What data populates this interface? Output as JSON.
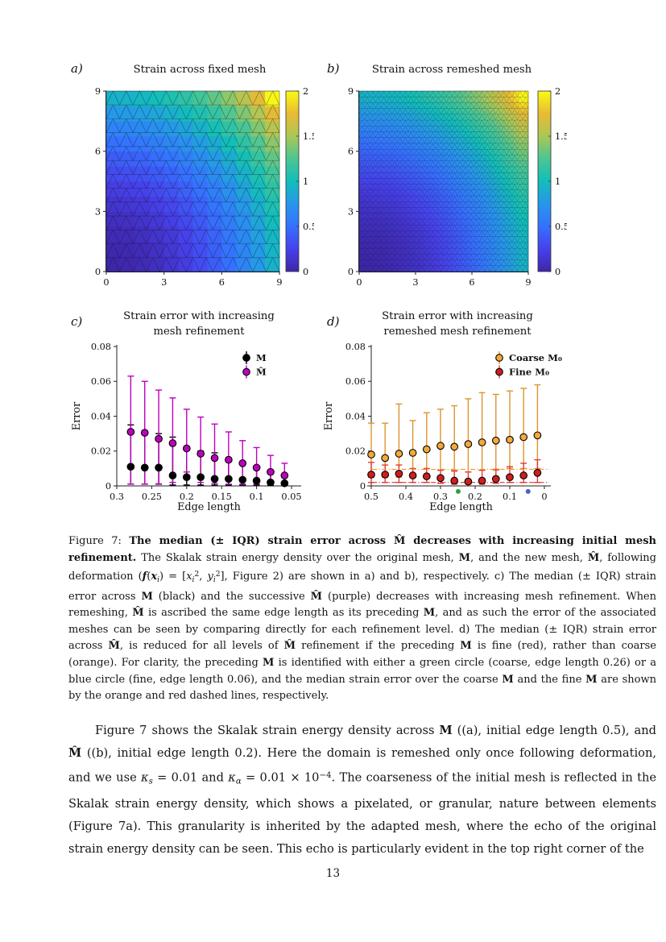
{
  "page": {
    "number": "13"
  },
  "figure": {
    "labels": {
      "a": "a)",
      "b": "b)",
      "c": "c)",
      "d": "d)"
    },
    "titles": {
      "a": "Strain across fixed mesh",
      "b": "Strain across remeshed mesh",
      "c1": "Strain error with increasing",
      "c2": "mesh refinement",
      "d1": "Strain error with increasing",
      "d2": "remeshed mesh refinement"
    }
  },
  "chart_data": [
    {
      "id": "a",
      "type": "heatmap",
      "title": "Strain across fixed mesh",
      "xtick_labels": [
        "0",
        "3",
        "6",
        "9"
      ],
      "ytick_labels": [
        "0",
        "3",
        "6",
        "9"
      ],
      "xlim": [
        0,
        9
      ],
      "ylim": [
        0,
        9
      ],
      "clim": [
        0,
        2
      ],
      "colorbar_ticks": [
        "0",
        "0.5",
        "1",
        "1.5",
        "2"
      ],
      "colormap": [
        "#3E26A8",
        "#4741EB",
        "#3571FE",
        "#2796EB",
        "#12BEB9",
        "#4AC693",
        "#ABC757",
        "#EABA33",
        "#F9FB14"
      ],
      "grid_rows_bottom_to_top": [
        [
          0.0,
          0.02,
          0.05,
          0.09,
          0.14,
          0.21,
          0.3,
          0.39,
          0.5,
          0.63,
          0.77,
          0.92
        ],
        [
          0.02,
          0.03,
          0.06,
          0.1,
          0.16,
          0.23,
          0.31,
          0.41,
          0.52,
          0.64,
          0.78,
          0.93
        ],
        [
          0.05,
          0.06,
          0.09,
          0.13,
          0.18,
          0.25,
          0.34,
          0.43,
          0.55,
          0.67,
          0.81,
          0.96
        ],
        [
          0.09,
          0.1,
          0.13,
          0.17,
          0.23,
          0.3,
          0.38,
          0.48,
          0.59,
          0.71,
          0.85,
          1.0
        ],
        [
          0.14,
          0.16,
          0.18,
          0.23,
          0.28,
          0.35,
          0.43,
          0.53,
          0.64,
          0.77,
          0.91,
          1.06
        ],
        [
          0.21,
          0.23,
          0.25,
          0.3,
          0.35,
          0.42,
          0.5,
          0.6,
          0.71,
          0.84,
          0.98,
          1.13
        ],
        [
          0.3,
          0.31,
          0.34,
          0.38,
          0.43,
          0.5,
          0.59,
          0.68,
          0.8,
          0.92,
          1.06,
          1.21
        ],
        [
          0.39,
          0.41,
          0.43,
          0.48,
          0.53,
          0.6,
          0.68,
          0.78,
          0.89,
          1.02,
          1.16,
          1.31
        ],
        [
          0.5,
          0.52,
          0.55,
          0.59,
          0.64,
          0.71,
          0.8,
          0.89,
          1.0,
          1.13,
          1.27,
          1.42
        ],
        [
          0.63,
          0.64,
          0.67,
          0.71,
          0.77,
          0.84,
          0.92,
          1.02,
          1.13,
          1.25,
          1.39,
          1.55
        ],
        [
          0.77,
          0.78,
          0.81,
          0.85,
          0.91,
          0.98,
          1.06,
          1.16,
          1.27,
          1.39,
          1.53,
          1.72
        ],
        [
          0.92,
          0.93,
          0.96,
          1.0,
          1.06,
          1.13,
          1.21,
          1.31,
          1.42,
          1.55,
          1.72,
          1.98
        ]
      ]
    },
    {
      "id": "b",
      "type": "heatmap",
      "title": "Strain across remeshed mesh",
      "xtick_labels": [
        "0",
        "3",
        "6",
        "9"
      ],
      "ytick_labels": [
        "0",
        "3",
        "6",
        "9"
      ],
      "xlim": [
        0,
        9
      ],
      "ylim": [
        0,
        9
      ],
      "clim": [
        0,
        2
      ],
      "colorbar_ticks": [
        "0",
        "0.5",
        "1",
        "1.5",
        "2"
      ],
      "colormap": [
        "#3E26A8",
        "#4741EB",
        "#3571FE",
        "#2796EB",
        "#12BEB9",
        "#4AC693",
        "#ABC757",
        "#EABA33",
        "#F9FB14"
      ],
      "grid_rows_bottom_to_top": [
        [
          0.0,
          0.02,
          0.05,
          0.09,
          0.14,
          0.21,
          0.3,
          0.39,
          0.5,
          0.63,
          0.77,
          0.92
        ],
        [
          0.02,
          0.03,
          0.06,
          0.1,
          0.16,
          0.23,
          0.31,
          0.41,
          0.52,
          0.64,
          0.78,
          0.93
        ],
        [
          0.05,
          0.06,
          0.09,
          0.13,
          0.18,
          0.25,
          0.34,
          0.43,
          0.55,
          0.67,
          0.81,
          0.96
        ],
        [
          0.09,
          0.1,
          0.13,
          0.17,
          0.23,
          0.3,
          0.38,
          0.48,
          0.59,
          0.71,
          0.85,
          1.0
        ],
        [
          0.14,
          0.16,
          0.18,
          0.23,
          0.28,
          0.35,
          0.43,
          0.53,
          0.64,
          0.77,
          0.91,
          1.06
        ],
        [
          0.21,
          0.23,
          0.25,
          0.3,
          0.35,
          0.42,
          0.5,
          0.6,
          0.71,
          0.84,
          0.98,
          1.13
        ],
        [
          0.3,
          0.31,
          0.34,
          0.38,
          0.43,
          0.5,
          0.59,
          0.68,
          0.8,
          0.92,
          1.06,
          1.21
        ],
        [
          0.39,
          0.41,
          0.43,
          0.48,
          0.53,
          0.6,
          0.68,
          0.78,
          0.89,
          1.02,
          1.16,
          1.31
        ],
        [
          0.5,
          0.52,
          0.55,
          0.59,
          0.64,
          0.71,
          0.8,
          0.89,
          1.0,
          1.13,
          1.27,
          1.42
        ],
        [
          0.63,
          0.64,
          0.67,
          0.71,
          0.77,
          0.84,
          0.92,
          1.02,
          1.13,
          1.25,
          1.39,
          1.55
        ],
        [
          0.77,
          0.78,
          0.81,
          0.85,
          0.91,
          0.98,
          1.06,
          1.16,
          1.27,
          1.39,
          1.53,
          1.72
        ],
        [
          0.92,
          0.93,
          0.96,
          1.0,
          1.06,
          1.13,
          1.21,
          1.31,
          1.42,
          1.55,
          1.72,
          1.98
        ]
      ]
    },
    {
      "id": "c",
      "type": "errorbar",
      "title_lines": [
        "Strain error with increasing",
        "mesh refinement"
      ],
      "xlabel": "Edge length",
      "ylabel": "Error",
      "xticks": [
        0.3,
        0.25,
        0.2,
        0.15,
        0.1,
        0.05
      ],
      "xtick_labels": [
        "0.3",
        "0.25",
        "0.2",
        "0.15",
        "0.1",
        "0.05"
      ],
      "yticks": [
        0,
        0.02,
        0.04,
        0.06,
        0.08
      ],
      "ytick_labels": [
        "0",
        "0.02",
        "0.04",
        "0.06",
        "0.08"
      ],
      "ylim": [
        0,
        0.08
      ],
      "x_reversed": true,
      "series": [
        {
          "name": "M",
          "color": "#000000",
          "fill": "#000000",
          "x": [
            0.28,
            0.26,
            0.24,
            0.22,
            0.2,
            0.18,
            0.16,
            0.14,
            0.12,
            0.1,
            0.08,
            0.06
          ],
          "median": [
            0.011,
            0.0105,
            0.0105,
            0.006,
            0.005,
            0.005,
            0.004,
            0.004,
            0.0035,
            0.003,
            0.002,
            0.0015
          ],
          "lo": [
            0.001,
            0.001,
            0.001,
            0.0005,
            0.0005,
            0.0005,
            0.0005,
            0.0005,
            0.0005,
            0.0005,
            0.0003,
            0.0003
          ],
          "hi": [
            0.035,
            0.031,
            0.03,
            0.028,
            0.0225,
            0.02,
            0.019,
            0.015,
            0.013,
            0.011,
            0.008,
            0.006
          ]
        },
        {
          "name": "M̂",
          "color": "#BE00BE",
          "fill": "#BE00BE",
          "x": [
            0.28,
            0.26,
            0.24,
            0.22,
            0.2,
            0.18,
            0.16,
            0.14,
            0.12,
            0.1,
            0.08,
            0.06
          ],
          "median": [
            0.031,
            0.0305,
            0.027,
            0.0245,
            0.0215,
            0.0185,
            0.016,
            0.015,
            0.013,
            0.0105,
            0.008,
            0.006
          ],
          "lo": [
            0.001,
            0.001,
            0.0012,
            0.002,
            0.008,
            0.002,
            0.0015,
            0.001,
            0.001,
            0.001,
            0.001,
            0.0008
          ],
          "hi": [
            0.063,
            0.06,
            0.055,
            0.0505,
            0.044,
            0.0395,
            0.0355,
            0.031,
            0.026,
            0.022,
            0.0175,
            0.013
          ]
        }
      ]
    },
    {
      "id": "d",
      "type": "errorbar",
      "title_lines": [
        "Strain error with increasing",
        "remeshed mesh refinement"
      ],
      "xlabel": "Edge length",
      "ylabel": "Error",
      "xticks": [
        0.5,
        0.4,
        0.3,
        0.2,
        0.1,
        0
      ],
      "xtick_labels": [
        "0.5",
        "0.4",
        "0.3",
        "0.2",
        "0.1",
        "0"
      ],
      "yticks": [
        0,
        0.02,
        0.04,
        0.06,
        0.08
      ],
      "ytick_labels": [
        "0",
        "0.02",
        "0.04",
        "0.06",
        "0.08"
      ],
      "ylim": [
        0,
        0.08
      ],
      "x_reversed": true,
      "series": [
        {
          "name": "Coarse M₀",
          "color": "#DC9430",
          "fill": "#F4A83B",
          "x": [
            0.5,
            0.46,
            0.42,
            0.38,
            0.34,
            0.3,
            0.26,
            0.22,
            0.18,
            0.14,
            0.1,
            0.06,
            0.02
          ],
          "median": [
            0.018,
            0.016,
            0.0185,
            0.019,
            0.021,
            0.023,
            0.0225,
            0.024,
            0.025,
            0.026,
            0.0265,
            0.028,
            0.029
          ],
          "lo": [
            0.005,
            0.005,
            0.005,
            0.005,
            0.006,
            0.009,
            0.009,
            0.008,
            0.009,
            0.009,
            0.01,
            0.01,
            0.01
          ],
          "hi": [
            0.036,
            0.036,
            0.047,
            0.0375,
            0.042,
            0.044,
            0.046,
            0.05,
            0.0535,
            0.0525,
            0.0545,
            0.056,
            0.058
          ]
        },
        {
          "name": "Fine M₀",
          "color": "#E33B3B",
          "fill": "#CD1F1F",
          "x": [
            0.5,
            0.46,
            0.42,
            0.38,
            0.34,
            0.3,
            0.26,
            0.22,
            0.18,
            0.14,
            0.1,
            0.06,
            0.02
          ],
          "median": [
            0.0065,
            0.0065,
            0.007,
            0.006,
            0.0055,
            0.0045,
            0.003,
            0.0025,
            0.003,
            0.004,
            0.005,
            0.006,
            0.0075
          ],
          "lo": [
            0.002,
            0.002,
            0.002,
            0.002,
            0.002,
            0.0015,
            0.001,
            0.001,
            0.001,
            0.0015,
            0.002,
            0.002,
            0.002
          ],
          "hi": [
            0.0135,
            0.012,
            0.012,
            0.01,
            0.01,
            0.009,
            0.0085,
            0.008,
            0.009,
            0.0095,
            0.011,
            0.013,
            0.015
          ]
        }
      ],
      "dashed_lines": [
        {
          "y": 0.0095,
          "color": "#F29B30",
          "meaning": "median strain error over coarse M"
        },
        {
          "y": 0.002,
          "color": "#E03535",
          "meaning": "median strain error over fine M"
        }
      ],
      "extra_points": [
        {
          "x": 0.249,
          "y": -0.0032,
          "color": "#2CA33C",
          "meaning": "coarse preceding mesh (edge length 0.26)"
        },
        {
          "x": 0.047,
          "y": -0.0032,
          "color": "#4A5BD8",
          "meaning": "fine preceding mesh (edge length 0.06)"
        }
      ]
    }
  ],
  "caption": {
    "segments": [
      {
        "t": "Figure 7:  "
      },
      {
        "t": "The median (± IQR) strain error across ",
        "s": "b"
      },
      {
        "t": "M̂",
        "s": "b"
      },
      {
        "t": " decreases with increasing initial mesh refinement.",
        "s": "b"
      },
      {
        "t": "  The Skalak strain energy density over the original mesh, "
      },
      {
        "t": "M",
        "s": "b"
      },
      {
        "t": ", and the new mesh, "
      },
      {
        "t": "M̂",
        "s": "b"
      },
      {
        "t": ", following deformation ("
      },
      {
        "t": "f",
        "s": "b i"
      },
      {
        "t": "("
      },
      {
        "t": "x",
        "s": "b i"
      },
      {
        "t": "i",
        "s": "sub i"
      },
      {
        "t": ") = ["
      },
      {
        "t": "x",
        "s": "i"
      },
      {
        "t": "i",
        "s": "sub i"
      },
      {
        "t": "2",
        "s": "sup"
      },
      {
        "t": ", "
      },
      {
        "t": "y",
        "s": "i"
      },
      {
        "t": "i",
        "s": "sub i"
      },
      {
        "t": "2",
        "s": "sup"
      },
      {
        "t": "], Figure 2) are shown in a) and b), respectively. c) The median (± IQR) strain error across "
      },
      {
        "t": "M",
        "s": "b"
      },
      {
        "t": " (black) and the successive "
      },
      {
        "t": "M̂",
        "s": "b"
      },
      {
        "t": " (purple) decreases with increasing mesh refinement. When remeshing, "
      },
      {
        "t": "M̂",
        "s": "b"
      },
      {
        "t": " is ascribed the same edge length as its preceding "
      },
      {
        "t": "M",
        "s": "b"
      },
      {
        "t": ", and as such the error of the associated meshes can be seen by comparing directly for each refinement level. d) The median (± IQR) strain error across "
      },
      {
        "t": "M̂",
        "s": "b"
      },
      {
        "t": ", is reduced for all levels of "
      },
      {
        "t": "M̂",
        "s": "b"
      },
      {
        "t": " refinement if the preceding "
      },
      {
        "t": "M",
        "s": "b"
      },
      {
        "t": " is fine (red), rather than coarse (orange). For clarity, the preceding "
      },
      {
        "t": "M",
        "s": "b"
      },
      {
        "t": " is identified with either a green circle (coarse, edge length 0.26) or a blue circle (fine, edge length 0.06), and the median strain error over the coarse "
      },
      {
        "t": "M",
        "s": "b"
      },
      {
        "t": " and the fine "
      },
      {
        "t": "M",
        "s": "b"
      },
      {
        "t": " are shown by the orange and red dashed lines, respectively."
      }
    ]
  },
  "body": {
    "segments": [
      {
        "t": "Figure 7 shows the Skalak strain energy density across "
      },
      {
        "t": "M",
        "s": "b"
      },
      {
        "t": " ((a), initial edge length 0.5), and "
      },
      {
        "t": "M̂",
        "s": "b"
      },
      {
        "t": " ((b), initial edge length 0.2). Here the domain is remeshed only once following deformation, and we use "
      },
      {
        "t": "κ",
        "s": "i"
      },
      {
        "t": "s",
        "s": "sub i"
      },
      {
        "t": " = 0.01 and "
      },
      {
        "t": "κ",
        "s": "i"
      },
      {
        "t": "α",
        "s": "sub i"
      },
      {
        "t": " = 0.01 × 10"
      },
      {
        "t": "−4",
        "s": "sup"
      },
      {
        "t": ". The coarseness of the initial mesh is reflected in the Skalak strain energy density, which shows a pixelated, or granular, nature between elements (Figure 7a). This granularity is inherited by the adapted mesh, where the echo of the original strain energy density can be seen. This echo is particularly evident in the top right corner of the"
      }
    ]
  }
}
